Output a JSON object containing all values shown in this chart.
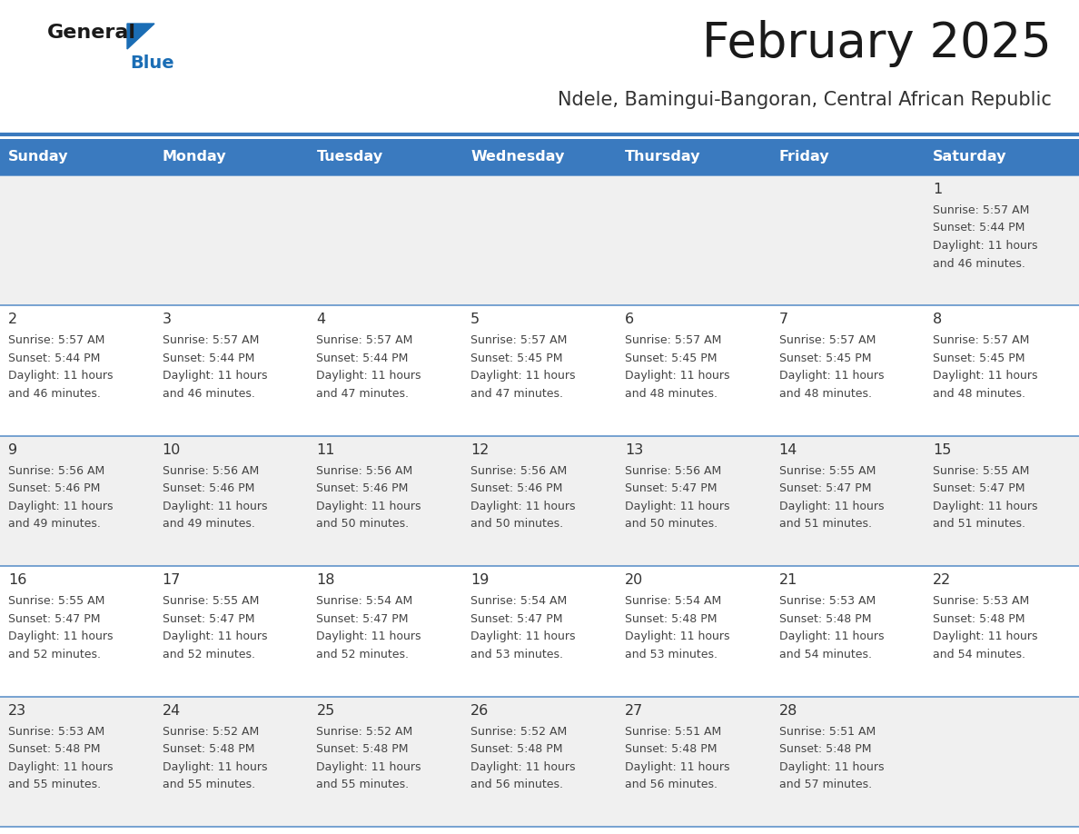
{
  "title": "February 2025",
  "subtitle": "Ndele, Bamingui-Bangoran, Central African Republic",
  "days_of_week": [
    "Sunday",
    "Monday",
    "Tuesday",
    "Wednesday",
    "Thursday",
    "Friday",
    "Saturday"
  ],
  "header_bg": "#3a7abf",
  "header_text_color": "#ffffff",
  "row_bg_odd": "#f0f0f0",
  "row_bg_even": "#ffffff",
  "separator_color": "#3a7abf",
  "title_color": "#1a1a1a",
  "subtitle_color": "#333333",
  "day_number_color": "#333333",
  "info_text_color": "#444444",
  "logo_general_color": "#1a1a1a",
  "logo_blue_color": "#1a6db5",
  "fig_width": 11.88,
  "fig_height": 9.18,
  "dpi": 100,
  "calendar_data": [
    {
      "day": 1,
      "col": 6,
      "row": 0,
      "sunrise": "5:57 AM",
      "sunset": "5:44 PM",
      "daylight_hours": 11,
      "daylight_minutes": 46
    },
    {
      "day": 2,
      "col": 0,
      "row": 1,
      "sunrise": "5:57 AM",
      "sunset": "5:44 PM",
      "daylight_hours": 11,
      "daylight_minutes": 46
    },
    {
      "day": 3,
      "col": 1,
      "row": 1,
      "sunrise": "5:57 AM",
      "sunset": "5:44 PM",
      "daylight_hours": 11,
      "daylight_minutes": 46
    },
    {
      "day": 4,
      "col": 2,
      "row": 1,
      "sunrise": "5:57 AM",
      "sunset": "5:44 PM",
      "daylight_hours": 11,
      "daylight_minutes": 47
    },
    {
      "day": 5,
      "col": 3,
      "row": 1,
      "sunrise": "5:57 AM",
      "sunset": "5:45 PM",
      "daylight_hours": 11,
      "daylight_minutes": 47
    },
    {
      "day": 6,
      "col": 4,
      "row": 1,
      "sunrise": "5:57 AM",
      "sunset": "5:45 PM",
      "daylight_hours": 11,
      "daylight_minutes": 48
    },
    {
      "day": 7,
      "col": 5,
      "row": 1,
      "sunrise": "5:57 AM",
      "sunset": "5:45 PM",
      "daylight_hours": 11,
      "daylight_minutes": 48
    },
    {
      "day": 8,
      "col": 6,
      "row": 1,
      "sunrise": "5:57 AM",
      "sunset": "5:45 PM",
      "daylight_hours": 11,
      "daylight_minutes": 48
    },
    {
      "day": 9,
      "col": 0,
      "row": 2,
      "sunrise": "5:56 AM",
      "sunset": "5:46 PM",
      "daylight_hours": 11,
      "daylight_minutes": 49
    },
    {
      "day": 10,
      "col": 1,
      "row": 2,
      "sunrise": "5:56 AM",
      "sunset": "5:46 PM",
      "daylight_hours": 11,
      "daylight_minutes": 49
    },
    {
      "day": 11,
      "col": 2,
      "row": 2,
      "sunrise": "5:56 AM",
      "sunset": "5:46 PM",
      "daylight_hours": 11,
      "daylight_minutes": 50
    },
    {
      "day": 12,
      "col": 3,
      "row": 2,
      "sunrise": "5:56 AM",
      "sunset": "5:46 PM",
      "daylight_hours": 11,
      "daylight_minutes": 50
    },
    {
      "day": 13,
      "col": 4,
      "row": 2,
      "sunrise": "5:56 AM",
      "sunset": "5:47 PM",
      "daylight_hours": 11,
      "daylight_minutes": 50
    },
    {
      "day": 14,
      "col": 5,
      "row": 2,
      "sunrise": "5:55 AM",
      "sunset": "5:47 PM",
      "daylight_hours": 11,
      "daylight_minutes": 51
    },
    {
      "day": 15,
      "col": 6,
      "row": 2,
      "sunrise": "5:55 AM",
      "sunset": "5:47 PM",
      "daylight_hours": 11,
      "daylight_minutes": 51
    },
    {
      "day": 16,
      "col": 0,
      "row": 3,
      "sunrise": "5:55 AM",
      "sunset": "5:47 PM",
      "daylight_hours": 11,
      "daylight_minutes": 52
    },
    {
      "day": 17,
      "col": 1,
      "row": 3,
      "sunrise": "5:55 AM",
      "sunset": "5:47 PM",
      "daylight_hours": 11,
      "daylight_minutes": 52
    },
    {
      "day": 18,
      "col": 2,
      "row": 3,
      "sunrise": "5:54 AM",
      "sunset": "5:47 PM",
      "daylight_hours": 11,
      "daylight_minutes": 52
    },
    {
      "day": 19,
      "col": 3,
      "row": 3,
      "sunrise": "5:54 AM",
      "sunset": "5:47 PM",
      "daylight_hours": 11,
      "daylight_minutes": 53
    },
    {
      "day": 20,
      "col": 4,
      "row": 3,
      "sunrise": "5:54 AM",
      "sunset": "5:48 PM",
      "daylight_hours": 11,
      "daylight_minutes": 53
    },
    {
      "day": 21,
      "col": 5,
      "row": 3,
      "sunrise": "5:53 AM",
      "sunset": "5:48 PM",
      "daylight_hours": 11,
      "daylight_minutes": 54
    },
    {
      "day": 22,
      "col": 6,
      "row": 3,
      "sunrise": "5:53 AM",
      "sunset": "5:48 PM",
      "daylight_hours": 11,
      "daylight_minutes": 54
    },
    {
      "day": 23,
      "col": 0,
      "row": 4,
      "sunrise": "5:53 AM",
      "sunset": "5:48 PM",
      "daylight_hours": 11,
      "daylight_minutes": 55
    },
    {
      "day": 24,
      "col": 1,
      "row": 4,
      "sunrise": "5:52 AM",
      "sunset": "5:48 PM",
      "daylight_hours": 11,
      "daylight_minutes": 55
    },
    {
      "day": 25,
      "col": 2,
      "row": 4,
      "sunrise": "5:52 AM",
      "sunset": "5:48 PM",
      "daylight_hours": 11,
      "daylight_minutes": 55
    },
    {
      "day": 26,
      "col": 3,
      "row": 4,
      "sunrise": "5:52 AM",
      "sunset": "5:48 PM",
      "daylight_hours": 11,
      "daylight_minutes": 56
    },
    {
      "day": 27,
      "col": 4,
      "row": 4,
      "sunrise": "5:51 AM",
      "sunset": "5:48 PM",
      "daylight_hours": 11,
      "daylight_minutes": 56
    },
    {
      "day": 28,
      "col": 5,
      "row": 4,
      "sunrise": "5:51 AM",
      "sunset": "5:48 PM",
      "daylight_hours": 11,
      "daylight_minutes": 57
    }
  ]
}
